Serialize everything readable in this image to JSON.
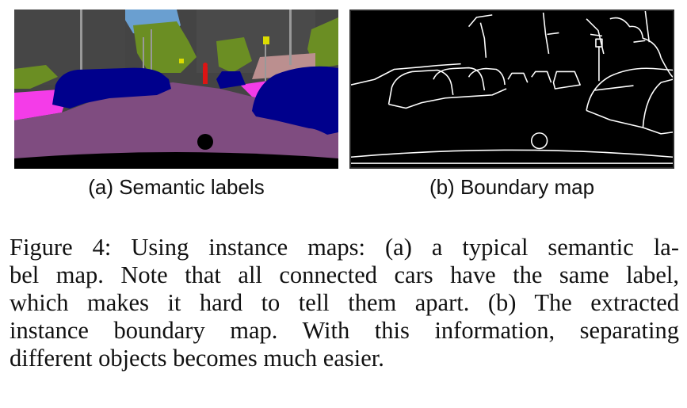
{
  "figure": {
    "panels": [
      {
        "id": "a",
        "caption": "(a) Semantic labels"
      },
      {
        "id": "b",
        "caption": "(b) Boundary map"
      }
    ],
    "caption_lines": [
      "Figure 4: Using instance maps: (a) a typical semantic la-",
      "bel map. Note that all connected cars have the same label,",
      "which makes it hard to tell them apart. (b) The extracted",
      "instance boundary map. With this information, separating",
      "different objects becomes much easier."
    ]
  },
  "colors": {
    "sky": "#6a9fd0",
    "building": "#464646",
    "vegetation": "#6b8e23",
    "road": "#7f4c80",
    "sidewalk": "#f43ce8",
    "car": "#00008c",
    "person": "#dc1414",
    "traffic_sign": "#dcdc00",
    "pole": "#999999",
    "boundary": "#ffffff"
  }
}
